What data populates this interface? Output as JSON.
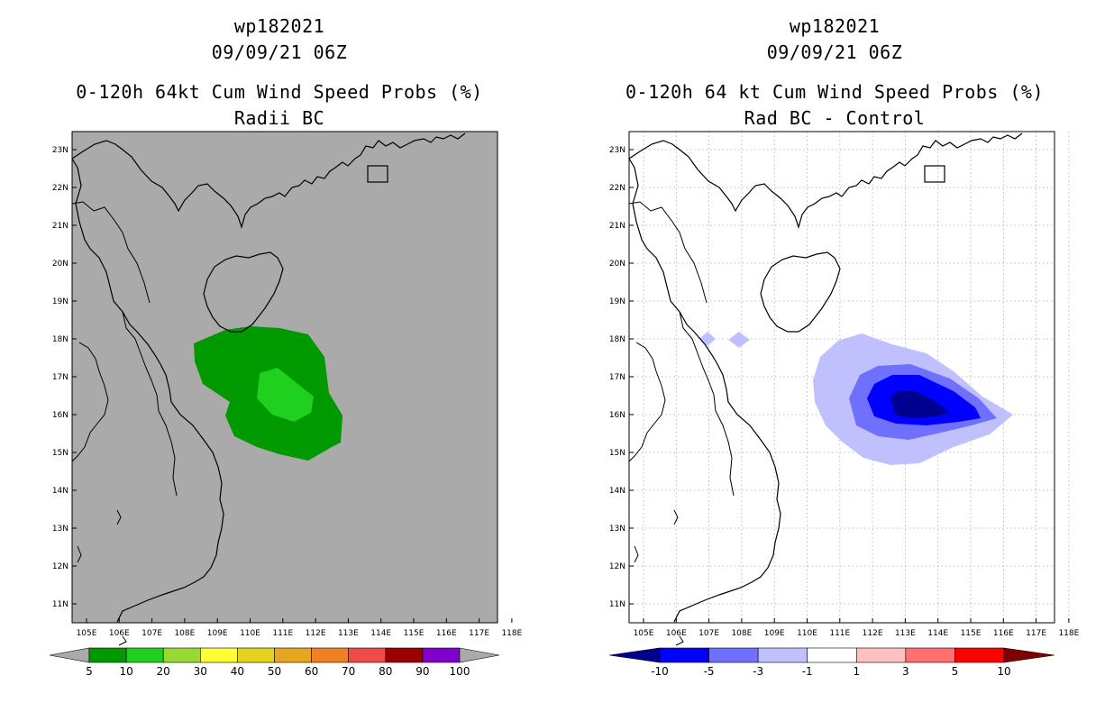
{
  "left_panel": {
    "storm_id": "wp182021",
    "datetime": "09/09/21 06Z",
    "product": "0-120h 64kt Cum Wind Speed Probs (%)",
    "subtitle": "Radii BC",
    "map_fill": "#aaaaaa",
    "legend": {
      "labels": [
        "5",
        "10",
        "20",
        "30",
        "40",
        "50",
        "60",
        "70",
        "80",
        "90",
        "100"
      ],
      "colors": [
        "#009900",
        "#1fd01f",
        "#99d933",
        "#ffff33",
        "#e6d21f",
        "#e6a61f",
        "#f08022",
        "#f04a4a",
        "#990000",
        "#8000cc"
      ],
      "end_arrow_color": "#aaaaaa"
    }
  },
  "right_panel": {
    "storm_id": "wp182021",
    "datetime": "09/09/21 06Z",
    "product": "0-120h 64 kt Cum Wind Speed Probs (%)",
    "subtitle": "Rad BC - Control",
    "map_fill": "#ffffff",
    "legend": {
      "labels": [
        "-10",
        "-5",
        "-3",
        "-1",
        "1",
        "3",
        "5",
        "10"
      ],
      "colors": [
        "#0000ff",
        "#7070ff",
        "#c0c0ff",
        "#ffffff",
        "#ffc0c0",
        "#ff7070",
        "#ff0000"
      ],
      "low_arrow_color": "#000090",
      "high_arrow_color": "#800000"
    }
  },
  "axes": {
    "lon_labels": [
      "105E",
      "106E",
      "107E",
      "108E",
      "109E",
      "110E",
      "111E",
      "112E",
      "113E",
      "114E",
      "115E",
      "116E",
      "117E",
      "118E"
    ],
    "lat_labels": [
      "11N",
      "12N",
      "13N",
      "14N",
      "15N",
      "16N",
      "17N",
      "18N",
      "19N",
      "20N",
      "21N",
      "22N",
      "23N"
    ]
  },
  "icons": {
    "coastline": "coastline-icon",
    "island": "hainan-island-icon",
    "port_box": "hong-kong-box-icon"
  }
}
